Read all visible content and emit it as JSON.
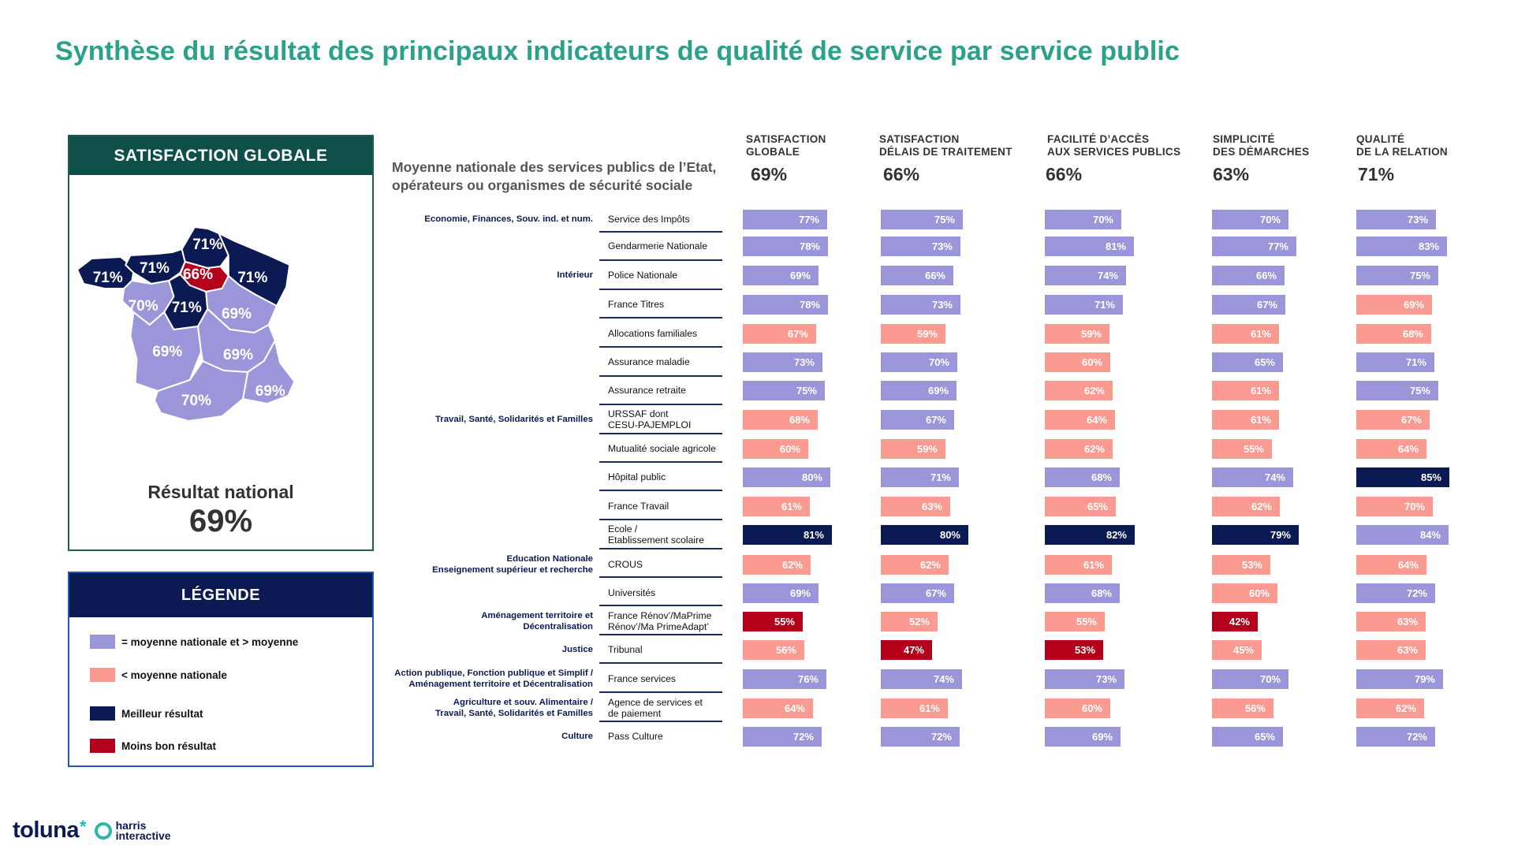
{
  "title": "Synthèse du résultat des principaux indicateurs de qualité de service par service public",
  "left_panel": {
    "header": "SATISFACTION GLOBALE",
    "national_label": "Résultat national",
    "national_value": "69%",
    "map_regions": [
      {
        "name": "Bretagne",
        "value": "71%",
        "status": "best"
      },
      {
        "name": "Normandie",
        "value": "71%",
        "status": "best"
      },
      {
        "name": "Hauts-de-France",
        "value": "71%",
        "status": "best"
      },
      {
        "name": "Île-de-France",
        "value": "66%",
        "status": "worst"
      },
      {
        "name": "Grand Est",
        "value": "71%",
        "status": "best"
      },
      {
        "name": "Pays de la Loire",
        "value": "70%",
        "status": "above"
      },
      {
        "name": "Centre-Val de Loire",
        "value": "71%",
        "status": "best"
      },
      {
        "name": "Bourgogne-Franche-Comté",
        "value": "69%",
        "status": "above"
      },
      {
        "name": "Nouvelle-Aquitaine",
        "value": "69%",
        "status": "above"
      },
      {
        "name": "Auvergne-Rhône-Alpes",
        "value": "69%",
        "status": "above"
      },
      {
        "name": "Occitanie",
        "value": "70%",
        "status": "above"
      },
      {
        "name": "Provence-Alpes-Côte d'Azur",
        "value": "69%",
        "status": "above"
      }
    ]
  },
  "legend": {
    "header": "LÉGENDE",
    "items": [
      {
        "label": "= moyenne nationale et > moyenne",
        "status": "above"
      },
      {
        "label": "< moyenne nationale",
        "status": "below"
      },
      {
        "label": "Meilleur résultat",
        "status": "best"
      },
      {
        "label": "Moins bon résultat",
        "status": "worst"
      }
    ]
  },
  "colors": {
    "above": "#9b95da",
    "below": "#fa9a90",
    "best": "#0b1a52",
    "worst": "#b5001b"
  },
  "intro": [
    "Moyenne nationale des services publics de l’Etat,",
    "opérateurs ou organismes de sécurité sociale"
  ],
  "chart_data": {
    "type": "bar",
    "columns": [
      {
        "label": [
          "SATISFACTION",
          "GLOBALE"
        ],
        "national": "69%"
      },
      {
        "label": [
          "SATISFACTION",
          "DÉLAIS DE TRAITEMENT"
        ],
        "national": "66%"
      },
      {
        "label": [
          "FACILITÉ D’ACCÈS",
          "AUX SERVICES PUBLICS"
        ],
        "national": "66%"
      },
      {
        "label": [
          "SIMPLICITÉ",
          "DES DÉMARCHES"
        ],
        "national": "63%"
      },
      {
        "label": [
          "QUALITÉ",
          "DE LA RELATION"
        ],
        "national": "71%"
      }
    ],
    "sectors": [
      {
        "label": [
          "Economie, Finances, Souv. ind. et num."
        ],
        "row": 0
      },
      {
        "label": [
          "Intérieur"
        ],
        "row": 2
      },
      {
        "label": [
          "Travail, Santé, Solidarités et Familles"
        ],
        "row": 7
      },
      {
        "label": [
          "Education Nationale",
          "Enseignement supérieur et recherche"
        ],
        "row": 12
      },
      {
        "label": [
          "Aménagement territoire et",
          "Décentralisation"
        ],
        "row": 14
      },
      {
        "label": [
          "Justice"
        ],
        "row": 15
      },
      {
        "label": [
          "Action publique, Fonction publique et Simplif /",
          "Aménagement territoire et Décentralisation"
        ],
        "row": 16
      },
      {
        "label": [
          "Agriculture et souv. Alimentaire /",
          "Travail, Santé, Solidarités et Familles"
        ],
        "row": 17
      },
      {
        "label": [
          "Culture"
        ],
        "row": 18
      }
    ],
    "rows": [
      {
        "name": [
          "Service des Impôts"
        ],
        "values": [
          77,
          75,
          70,
          70,
          73
        ],
        "status": [
          "above",
          "above",
          "above",
          "above",
          "above"
        ]
      },
      {
        "name": [
          "Gendarmerie Nationale"
        ],
        "values": [
          78,
          73,
          81,
          77,
          83
        ],
        "status": [
          "above",
          "above",
          "above",
          "above",
          "above"
        ]
      },
      {
        "name": [
          "Police Nationale"
        ],
        "values": [
          69,
          66,
          74,
          66,
          75
        ],
        "status": [
          "above",
          "above",
          "above",
          "above",
          "above"
        ]
      },
      {
        "name": [
          "France Titres"
        ],
        "values": [
          78,
          73,
          71,
          67,
          69
        ],
        "status": [
          "above",
          "above",
          "above",
          "above",
          "below"
        ]
      },
      {
        "name": [
          "Allocations familiales"
        ],
        "values": [
          67,
          59,
          59,
          61,
          68
        ],
        "status": [
          "below",
          "below",
          "below",
          "below",
          "below"
        ]
      },
      {
        "name": [
          "Assurance maladie"
        ],
        "values": [
          73,
          70,
          60,
          65,
          71
        ],
        "status": [
          "above",
          "above",
          "below",
          "above",
          "above"
        ]
      },
      {
        "name": [
          "Assurance retraite"
        ],
        "values": [
          75,
          69,
          62,
          61,
          75
        ],
        "status": [
          "above",
          "above",
          "below",
          "below",
          "above"
        ]
      },
      {
        "name": [
          "URSSAF dont",
          "CESU-PAJEMPLOI"
        ],
        "values": [
          68,
          67,
          64,
          61,
          67
        ],
        "status": [
          "below",
          "above",
          "below",
          "below",
          "below"
        ]
      },
      {
        "name": [
          "Mutualité sociale agricole"
        ],
        "values": [
          60,
          59,
          62,
          55,
          64
        ],
        "status": [
          "below",
          "below",
          "below",
          "below",
          "below"
        ]
      },
      {
        "name": [
          "Hôpital public"
        ],
        "values": [
          80,
          71,
          68,
          74,
          85
        ],
        "status": [
          "above",
          "above",
          "above",
          "above",
          "best"
        ]
      },
      {
        "name": [
          "France Travail"
        ],
        "values": [
          61,
          63,
          65,
          62,
          70
        ],
        "status": [
          "below",
          "below",
          "below",
          "below",
          "below"
        ]
      },
      {
        "name": [
          "Ecole /",
          "Etablissement scolaire"
        ],
        "values": [
          81,
          80,
          82,
          79,
          84
        ],
        "status": [
          "best",
          "best",
          "best",
          "best",
          "above"
        ]
      },
      {
        "name": [
          "CROUS"
        ],
        "values": [
          62,
          62,
          61,
          53,
          64
        ],
        "status": [
          "below",
          "below",
          "below",
          "below",
          "below"
        ]
      },
      {
        "name": [
          "Universités"
        ],
        "values": [
          69,
          67,
          68,
          60,
          72
        ],
        "status": [
          "above",
          "above",
          "above",
          "below",
          "above"
        ]
      },
      {
        "name": [
          "France Rénov’/MaPrime",
          "Rénov’/Ma PrimeAdapt’"
        ],
        "values": [
          55,
          52,
          55,
          42,
          63
        ],
        "status": [
          "worst",
          "below",
          "below",
          "worst",
          "below"
        ]
      },
      {
        "name": [
          "Tribunal"
        ],
        "values": [
          56,
          47,
          53,
          45,
          63
        ],
        "status": [
          "below",
          "worst",
          "worst",
          "below",
          "below"
        ]
      },
      {
        "name": [
          "France services"
        ],
        "values": [
          76,
          74,
          73,
          70,
          79
        ],
        "status": [
          "above",
          "above",
          "above",
          "above",
          "above"
        ]
      },
      {
        "name": [
          "Agence de services et",
          "de paiement"
        ],
        "values": [
          64,
          61,
          60,
          56,
          62
        ],
        "status": [
          "below",
          "below",
          "below",
          "below",
          "below"
        ]
      },
      {
        "name": [
          "Pass Culture"
        ],
        "values": [
          72,
          72,
          69,
          65,
          72
        ],
        "status": [
          "above",
          "above",
          "above",
          "above",
          "above"
        ]
      }
    ]
  },
  "logo": {
    "main": "toluna",
    "star": "*",
    "sub": [
      "harris",
      "interactive"
    ]
  }
}
